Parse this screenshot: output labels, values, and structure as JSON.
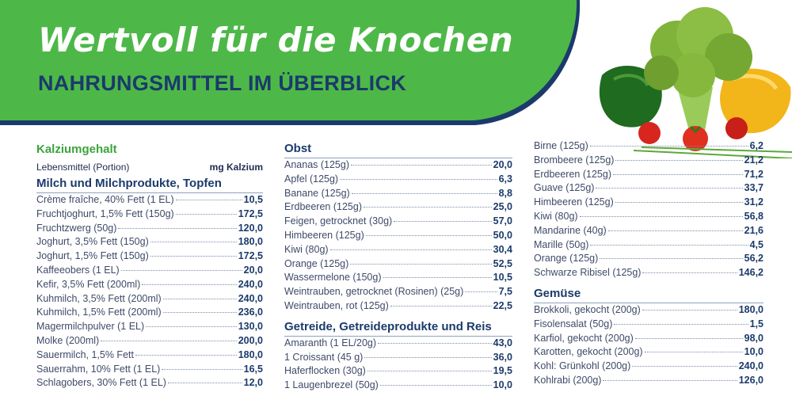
{
  "header": {
    "title": "Wertvoll für die Knochen",
    "subtitle": "NAHRUNGSMITTEL IM ÜBERBLICK"
  },
  "colors": {
    "banner_green": "#4db848",
    "navy": "#1b3a6b",
    "accent_green": "#3aa43a"
  },
  "table_header": {
    "heading": "Kalziumgehalt",
    "food_label": "Lebensmittel (Portion)",
    "unit_label": "mg Kalzium"
  },
  "sections": {
    "milch": {
      "title": "Milch und Milchprodukte, Topfen",
      "rows": [
        {
          "name": "Crème fraîche, 40% Fett (1 EL)",
          "value": "10,5"
        },
        {
          "name": "Fruchtjoghurt, 1,5% Fett (150g)",
          "value": "172,5"
        },
        {
          "name": "Fruchtzwerg (50g)",
          "value": "120,0"
        },
        {
          "name": "Joghurt, 3,5% Fett (150g)",
          "value": "180,0"
        },
        {
          "name": "Joghurt, 1,5% Fett (150g)",
          "value": "172,5"
        },
        {
          "name": "Kaffeeobers (1 EL)",
          "value": "20,0"
        },
        {
          "name": "Kefir, 3,5% Fett (200ml)",
          "value": "240,0"
        },
        {
          "name": "Kuhmilch, 3,5% Fett (200ml)",
          "value": "240,0"
        },
        {
          "name": "Kuhmilch, 1,5% Fett (200ml)",
          "value": "236,0"
        },
        {
          "name": "Magermilchpulver (1 EL)",
          "value": "130,0"
        },
        {
          "name": "Molke (200ml)",
          "value": "200,0"
        },
        {
          "name": "Sauermilch, 1,5% Fett",
          "value": "180,0"
        },
        {
          "name": "Sauerrahm, 10% Fett (1 EL)",
          "value": "16,5"
        },
        {
          "name": "Schlagobers, 30% Fett (1 EL)",
          "value": "12,0"
        }
      ]
    },
    "obst": {
      "title": "Obst",
      "rows": [
        {
          "name": "Ananas (125g)",
          "value": "20,0"
        },
        {
          "name": "Apfel (125g)",
          "value": "6,3"
        },
        {
          "name": "Banane (125g)",
          "value": "8,8"
        },
        {
          "name": "Erdbeeren (125g)",
          "value": "25,0"
        },
        {
          "name": "Feigen, getrocknet (30g)",
          "value": "57,0"
        },
        {
          "name": "Himbeeren (125g)",
          "value": "50,0"
        },
        {
          "name": "Kiwi (80g)",
          "value": "30,4"
        },
        {
          "name": "Orange (125g)",
          "value": "52,5"
        },
        {
          "name": "Wassermelone (150g)",
          "value": "10,5"
        },
        {
          "name": "Weintrauben, getrocknet (Rosinen) (25g)",
          "value": "7,5"
        },
        {
          "name": "Weintrauben, rot (125g)",
          "value": "22,5"
        }
      ]
    },
    "getreide": {
      "title": "Getreide, Getreideprodukte und Reis",
      "rows": [
        {
          "name": "Amaranth (1 EL/20g)",
          "value": "43,0"
        },
        {
          "name": "1 Croissant (45 g)",
          "value": "36,0"
        },
        {
          "name": "Haferflocken (30g)",
          "value": "19,5"
        },
        {
          "name": "1 Laugenbrezel (50g)",
          "value": "10,0"
        }
      ]
    },
    "obst2": {
      "rows": [
        {
          "name": "Birne (125g)",
          "value": "6,2"
        },
        {
          "name": "Brombeere (125g)",
          "value": "21,2"
        },
        {
          "name": "Erdbeeren (125g)",
          "value": "71,2"
        },
        {
          "name": "Guave (125g)",
          "value": "33,7"
        },
        {
          "name": "Himbeeren (125g)",
          "value": "31,2"
        },
        {
          "name": "Kiwi (80g)",
          "value": "56,8"
        },
        {
          "name": "Mandarine (40g)",
          "value": "21,6"
        },
        {
          "name": "Marille (50g)",
          "value": "4,5"
        },
        {
          "name": "Orange (125g)",
          "value": "56,2"
        },
        {
          "name": "Schwarze Ribisel (125g)",
          "value": "146,2"
        }
      ]
    },
    "gemuese": {
      "title": "Gemüse",
      "rows": [
        {
          "name": "Brokkoli, gekocht (200g)",
          "value": "180,0"
        },
        {
          "name": "Fisolensalat (50g)",
          "value": "1,5"
        },
        {
          "name": "Karfiol, gekocht (200g)",
          "value": "98,0"
        },
        {
          "name": "Karotten, gekocht (200g)",
          "value": "10,0"
        },
        {
          "name": "Kohl: Grünkohl (200g)",
          "value": "240,0"
        },
        {
          "name": "Kohlrabi (200g)",
          "value": "126,0"
        }
      ]
    }
  }
}
